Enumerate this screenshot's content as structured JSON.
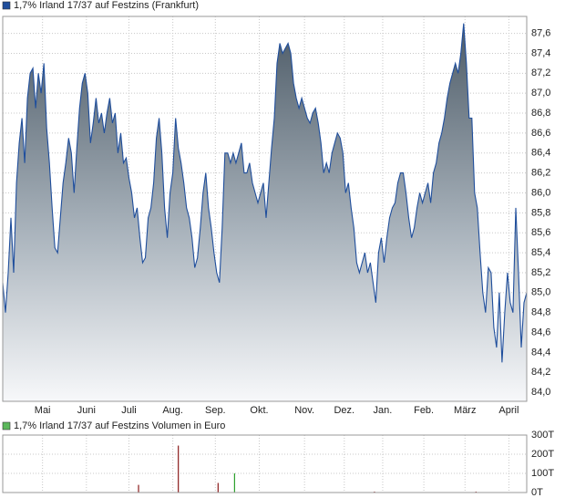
{
  "chart_data": [
    {
      "type": "area",
      "series": [
        {
          "name": "1,7% Irland 17/37 auf Festzins (Frankfurt)",
          "color": "#1f4e9c",
          "values": [
            85.1,
            84.8,
            85.2,
            85.75,
            85.2,
            86.1,
            86.5,
            86.75,
            86.3,
            86.95,
            87.2,
            87.25,
            86.85,
            87.2,
            87.0,
            87.3,
            86.65,
            86.3,
            85.85,
            85.45,
            85.4,
            85.75,
            86.1,
            86.3,
            86.55,
            86.4,
            86.0,
            86.45,
            86.85,
            87.1,
            87.2,
            87.0,
            86.5,
            86.7,
            86.95,
            86.7,
            86.8,
            86.6,
            86.8,
            86.95,
            86.7,
            86.8,
            86.4,
            86.6,
            86.3,
            86.35,
            86.15,
            86.0,
            85.75,
            85.85,
            85.55,
            85.3,
            85.35,
            85.75,
            85.85,
            86.1,
            86.55,
            86.75,
            86.4,
            85.85,
            85.55,
            86.0,
            86.2,
            86.75,
            86.45,
            86.3,
            86.1,
            85.85,
            85.75,
            85.55,
            85.25,
            85.35,
            85.65,
            86.0,
            86.2,
            85.85,
            85.65,
            85.4,
            85.2,
            85.1,
            85.65,
            86.4,
            86.4,
            86.3,
            86.4,
            86.3,
            86.4,
            86.5,
            86.2,
            86.2,
            86.3,
            86.1,
            86.0,
            85.9,
            86.0,
            86.1,
            85.75,
            86.1,
            86.45,
            86.75,
            87.3,
            87.5,
            87.4,
            87.45,
            87.5,
            87.4,
            87.1,
            86.95,
            86.85,
            86.95,
            86.85,
            86.75,
            86.7,
            86.8,
            86.85,
            86.7,
            86.5,
            86.2,
            86.3,
            86.2,
            86.4,
            86.5,
            86.6,
            86.55,
            86.4,
            86.0,
            86.1,
            85.85,
            85.65,
            85.3,
            85.2,
            85.3,
            85.4,
            85.2,
            85.3,
            85.1,
            84.9,
            85.4,
            85.55,
            85.3,
            85.55,
            85.75,
            85.85,
            85.9,
            86.1,
            86.2,
            86.2,
            86.0,
            85.75,
            85.55,
            85.65,
            85.85,
            86.0,
            85.9,
            86.0,
            86.1,
            85.9,
            86.2,
            86.3,
            86.5,
            86.6,
            86.75,
            86.95,
            87.1,
            87.2,
            87.3,
            87.2,
            87.4,
            87.7,
            87.3,
            86.75,
            86.75,
            86.0,
            85.85,
            85.4,
            85.0,
            84.8,
            85.25,
            85.2,
            84.65,
            84.45,
            85.0,
            84.3,
            84.8,
            85.2,
            84.9,
            84.8,
            85.85,
            85.2,
            84.45,
            84.9,
            85.0
          ]
        }
      ],
      "x": [
        0,
        2,
        4,
        6,
        8,
        10,
        12,
        14,
        16,
        18,
        20,
        22,
        24,
        26,
        28,
        30,
        32,
        34,
        36,
        38,
        40,
        42,
        44,
        46,
        48,
        50,
        52,
        54,
        56,
        58,
        60,
        62,
        64,
        66,
        68,
        70,
        72,
        74,
        76,
        78,
        80,
        82,
        84,
        86,
        88,
        90,
        92,
        94,
        96,
        98,
        100,
        102,
        104,
        106,
        108,
        110,
        112,
        114,
        116,
        118,
        120,
        122,
        124,
        126,
        128,
        130,
        132,
        134,
        136,
        138,
        140,
        142,
        144,
        146,
        148,
        150,
        152,
        154,
        156,
        158,
        160,
        162,
        164,
        166,
        168,
        170,
        172,
        174,
        176,
        178,
        180,
        182,
        184,
        186,
        188,
        190,
        192,
        194,
        196,
        198,
        200,
        202,
        204,
        206,
        208,
        210,
        212,
        214,
        216,
        218,
        220,
        222,
        224,
        226,
        228,
        230,
        232,
        234,
        236,
        238,
        240,
        242,
        244,
        246,
        248,
        250,
        252,
        254,
        256,
        258,
        260,
        262,
        264,
        266,
        268,
        270,
        272,
        274,
        276,
        278,
        280,
        282,
        284,
        286,
        288,
        290,
        292,
        294,
        296,
        298,
        300,
        302,
        304,
        306,
        308,
        310,
        312,
        314,
        316,
        318,
        320,
        322,
        324,
        326,
        328,
        330,
        332,
        334,
        336,
        338,
        340,
        342,
        344,
        346,
        348,
        350,
        352,
        354,
        356,
        358,
        360,
        362,
        364,
        366,
        368,
        370,
        372,
        374,
        376,
        378,
        380,
        382
      ],
      "xlim": [
        0,
        382
      ],
      "xticks": [
        {
          "value": 29,
          "label": "Mai"
        },
        {
          "value": 61,
          "label": "Juni"
        },
        {
          "value": 92,
          "label": "Juli"
        },
        {
          "value": 124,
          "label": "Aug."
        },
        {
          "value": 155,
          "label": "Sep."
        },
        {
          "value": 187,
          "label": "Okt."
        },
        {
          "value": 220,
          "label": "Nov."
        },
        {
          "value": 249,
          "label": "Dez."
        },
        {
          "value": 277,
          "label": "Jan."
        },
        {
          "value": 307,
          "label": "Feb."
        },
        {
          "value": 337,
          "label": "März"
        },
        {
          "value": 369,
          "label": "April"
        }
      ],
      "ylim": [
        83.91,
        87.77
      ],
      "yticks": [
        {
          "value": 84.0,
          "label": "84,0"
        },
        {
          "value": 84.2,
          "label": "84,2"
        },
        {
          "value": 84.4,
          "label": "84,4"
        },
        {
          "value": 84.6,
          "label": "84,6"
        },
        {
          "value": 84.8,
          "label": "84,8"
        },
        {
          "value": 85.0,
          "label": "85,0"
        },
        {
          "value": 85.2,
          "label": "85,2"
        },
        {
          "value": 85.4,
          "label": "85,4"
        },
        {
          "value": 85.6,
          "label": "85,6"
        },
        {
          "value": 85.8,
          "label": "85,8"
        },
        {
          "value": 86.0,
          "label": "86,0"
        },
        {
          "value": 86.2,
          "label": "86,2"
        },
        {
          "value": 86.4,
          "label": "86,4"
        },
        {
          "value": 86.6,
          "label": "86,6"
        },
        {
          "value": 86.8,
          "label": "86,8"
        },
        {
          "value": 87.0,
          "label": "87,0"
        },
        {
          "value": 87.2,
          "label": "87,2"
        },
        {
          "value": 87.4,
          "label": "87,4"
        },
        {
          "value": 87.6,
          "label": "87,6"
        }
      ],
      "grid": true
    },
    {
      "type": "bar",
      "series": [
        {
          "name": "1,7% Irland 17/37 auf Festzins Volumen in Euro",
          "color": "#5cb85c",
          "values": [
            40,
            245,
            50,
            100,
            5,
            5
          ],
          "colors": [
            "#8b1a1a",
            "#8b1a1a",
            "#8b1a1a",
            "#2ca02c",
            "#8b1a1a",
            "#8b1a1a"
          ]
        }
      ],
      "x": [
        99,
        128,
        157,
        169,
        271,
        345
      ],
      "xlim": [
        0,
        382
      ],
      "xticks": [
        29,
        61,
        92,
        124,
        155,
        187,
        220,
        249,
        277,
        307,
        337,
        369
      ],
      "ylim": [
        0,
        300
      ],
      "yticks": [
        {
          "value": 0,
          "label": "0T"
        },
        {
          "value": 100,
          "label": "100T"
        },
        {
          "value": 200,
          "label": "200T"
        },
        {
          "value": 300,
          "label": "300T"
        }
      ],
      "grid": true
    }
  ]
}
